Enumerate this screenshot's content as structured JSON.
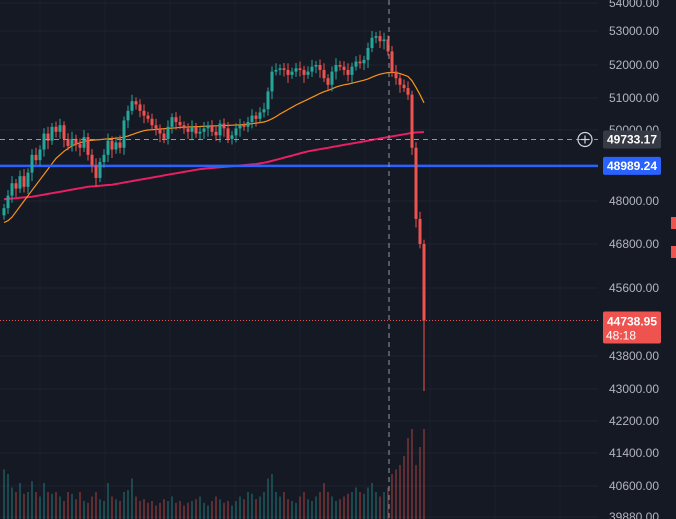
{
  "chart_data": {
    "type": "candlestick",
    "title": "",
    "xlabel": "",
    "ylabel": "",
    "ylim": [
      39700,
      54150
    ],
    "y_ticks": [
      "54000.00",
      "53000.00",
      "52000.00",
      "51000.00",
      "50000.00",
      "48000.00",
      "46800.00",
      "45600.00",
      "43800.00",
      "43000.00",
      "42200.00",
      "41400.00",
      "40600.00",
      "39880.00"
    ],
    "grid": true,
    "colors": {
      "background": "#151924",
      "up": "#26a69a",
      "down": "#ef5350",
      "ma_short": "#f7931a",
      "ma_long": "#e91e63",
      "level_line": "#2962ff",
      "crosshair": "#9598a1"
    },
    "candles_close": [
      47800,
      48150,
      48500,
      48350,
      48700,
      48400,
      48800,
      49300,
      49150,
      49450,
      49900,
      49700,
      50100,
      49950,
      50150,
      49750,
      49550,
      49750,
      49600,
      49500,
      49800,
      49300,
      49000,
      48650,
      49100,
      49300,
      49700,
      49450,
      49650,
      49500,
      50300,
      50600,
      50900,
      50800,
      50600,
      50450,
      50350,
      50150,
      50050,
      49900,
      49750,
      50100,
      50400,
      50250,
      50150,
      50050,
      49950,
      50100,
      49900,
      49950,
      50050,
      50150,
      49950,
      49850,
      50200,
      50050,
      49750,
      49850,
      50050,
      50150,
      50100,
      50250,
      50450,
      50350,
      50550,
      50650,
      51200,
      51800,
      51850,
      51900,
      51850,
      51700,
      51800,
      51900,
      51850,
      51700,
      51800,
      51950,
      52000,
      51850,
      51600,
      51400,
      51800,
      52000,
      51950,
      51850,
      51700,
      51950,
      52100,
      52050,
      52150,
      52500,
      52800,
      52850,
      52700,
      52750,
      52400,
      51800,
      51600,
      51400,
      51300,
      51100,
      49500,
      47500,
      46800,
      44738.95
    ],
    "moving_average_short": [
      47400,
      47450,
      47550,
      47700,
      47850,
      48000,
      48150,
      48300,
      48450,
      48600,
      48750,
      48900,
      49050,
      49200,
      49300,
      49400,
      49480,
      49550,
      49600,
      49640,
      49680,
      49700,
      49710,
      49720,
      49730,
      49740,
      49750,
      49760,
      49770,
      49780,
      49800,
      49830,
      49870,
      49910,
      49950,
      49980,
      50000,
      50010,
      50020,
      50030,
      50040,
      50050,
      50060,
      50070,
      50080,
      50090,
      50095,
      50100,
      50105,
      50110,
      50115,
      50120,
      50125,
      50130,
      50135,
      50140,
      50145,
      50150,
      50155,
      50160,
      50170,
      50185,
      50200,
      50215,
      50230,
      50250,
      50290,
      50350,
      50420,
      50500,
      50570,
      50640,
      50710,
      50780,
      50840,
      50900,
      50960,
      51020,
      51080,
      51140,
      51190,
      51230,
      51280,
      51330,
      51370,
      51400,
      51420,
      51450,
      51480,
      51510,
      51540,
      51580,
      51630,
      51680,
      51720,
      51750,
      51770,
      51780,
      51770,
      51740,
      51700,
      51650,
      51520,
      51320,
      51100,
      50850
    ],
    "moving_average_long": [
      48050,
      48060,
      48070,
      48080,
      48090,
      48100,
      48110,
      48120,
      48140,
      48160,
      48180,
      48200,
      48220,
      48240,
      48260,
      48280,
      48300,
      48320,
      48340,
      48360,
      48380,
      48400,
      48410,
      48420,
      48430,
      48440,
      48450,
      48460,
      48480,
      48500,
      48520,
      48540,
      48560,
      48580,
      48600,
      48620,
      48640,
      48660,
      48680,
      48700,
      48720,
      48740,
      48760,
      48780,
      48800,
      48820,
      48840,
      48860,
      48880,
      48900,
      48910,
      48920,
      48930,
      48940,
      48950,
      48960,
      48970,
      48980,
      48990,
      49000,
      49010,
      49020,
      49030,
      49040,
      49060,
      49080,
      49100,
      49130,
      49160,
      49190,
      49220,
      49250,
      49280,
      49310,
      49340,
      49370,
      49400,
      49420,
      49440,
      49460,
      49480,
      49500,
      49520,
      49540,
      49560,
      49580,
      49600,
      49620,
      49640,
      49660,
      49680,
      49700,
      49720,
      49740,
      49760,
      49780,
      49800,
      49820,
      49840,
      49860,
      49880,
      49900,
      49920,
      49930,
      49935,
      49940
    ],
    "volume_relative": [
      0.55,
      0.5,
      0.35,
      0.3,
      0.4,
      0.28,
      0.3,
      0.42,
      0.3,
      0.25,
      0.4,
      0.3,
      0.28,
      0.3,
      0.25,
      0.2,
      0.3,
      0.28,
      0.22,
      0.3,
      0.2,
      0.18,
      0.25,
      0.3,
      0.22,
      0.2,
      0.4,
      0.25,
      0.22,
      0.2,
      0.3,
      0.32,
      0.45,
      0.25,
      0.2,
      0.22,
      0.18,
      0.2,
      0.15,
      0.18,
      0.22,
      0.2,
      0.25,
      0.18,
      0.2,
      0.15,
      0.18,
      0.2,
      0.22,
      0.25,
      0.18,
      0.15,
      0.2,
      0.25,
      0.22,
      0.18,
      0.2,
      0.15,
      0.2,
      0.25,
      0.22,
      0.3,
      0.28,
      0.22,
      0.25,
      0.3,
      0.45,
      0.5,
      0.3,
      0.25,
      0.3,
      0.22,
      0.2,
      0.18,
      0.25,
      0.3,
      0.22,
      0.2,
      0.25,
      0.3,
      0.4,
      0.3,
      0.25,
      0.2,
      0.22,
      0.25,
      0.28,
      0.3,
      0.35,
      0.3,
      0.28,
      0.35,
      0.4,
      0.3,
      0.25,
      0.3,
      0.35,
      0.5,
      0.55,
      0.6,
      0.7,
      0.9,
      1.0,
      0.6,
      0.8,
      1.0
    ],
    "level_line_value": 48989.24,
    "crosshair_value": 49733.17,
    "last_price": 44738.95,
    "price_tags": {
      "crosshair": "49733.17",
      "level": "48989.24",
      "last": "44738.95",
      "countdown": "48:18"
    }
  }
}
